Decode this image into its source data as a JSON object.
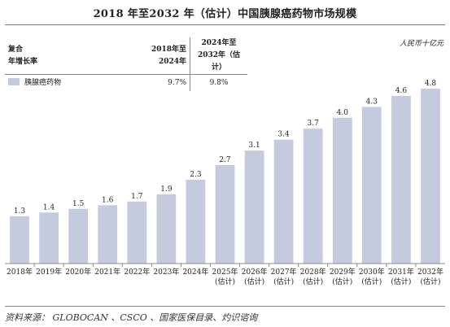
{
  "title": "2018 年至2032 年（估计）中国胰腺癌药物市场规模",
  "unit": "人民币十亿元",
  "cagr_table": {
    "header_label_line1": "复合",
    "header_label_line2": "年增长率",
    "col1_line1": "2018年至",
    "col1_line2": "2024年",
    "col2_line1": "2024年至",
    "col2_line2": "2032年（估计）",
    "row_label": "胰腺癌药物",
    "row_value1": "9.7%",
    "row_value2": "9.8%"
  },
  "source": "资料来源： GLOBOCAN 、CSCO 、国家医保目录、灼识谘询",
  "colors": {
    "bar": "#c4cbde",
    "axis": "#888888"
  },
  "chart_data": {
    "type": "bar",
    "title": "2018 年至2032 年（估计）中国胰腺癌药物市场规模",
    "ylabel": "人民币十亿元",
    "categories": [
      "2018年",
      "2019年",
      "2020年",
      "2021年",
      "2022年",
      "2023年",
      "2024年",
      "2025年",
      "2026年",
      "2027年",
      "2028年",
      "2029年",
      "2030年",
      "2031年",
      "2032年"
    ],
    "category_notes": [
      "",
      "",
      "",
      "",
      "",
      "",
      "",
      "(估计)",
      "(估计)",
      "(估计)",
      "(估计)",
      "(估计)",
      "(估计)",
      "(估计)",
      "(估计)"
    ],
    "values": [
      1.3,
      1.4,
      1.5,
      1.6,
      1.7,
      1.9,
      2.3,
      2.7,
      3.1,
      3.4,
      3.7,
      4.0,
      4.3,
      4.6,
      4.8
    ],
    "value_labels": [
      "1.3",
      "1.4",
      "1.5",
      "1.6",
      "1.7",
      "1.9",
      "2.3",
      "2.7",
      "3.1",
      "3.4",
      "3.7",
      "4.0",
      "4.3",
      "4.6",
      "4.8"
    ],
    "ylim": [
      0,
      5
    ],
    "grid": false,
    "legend": "top-left"
  }
}
